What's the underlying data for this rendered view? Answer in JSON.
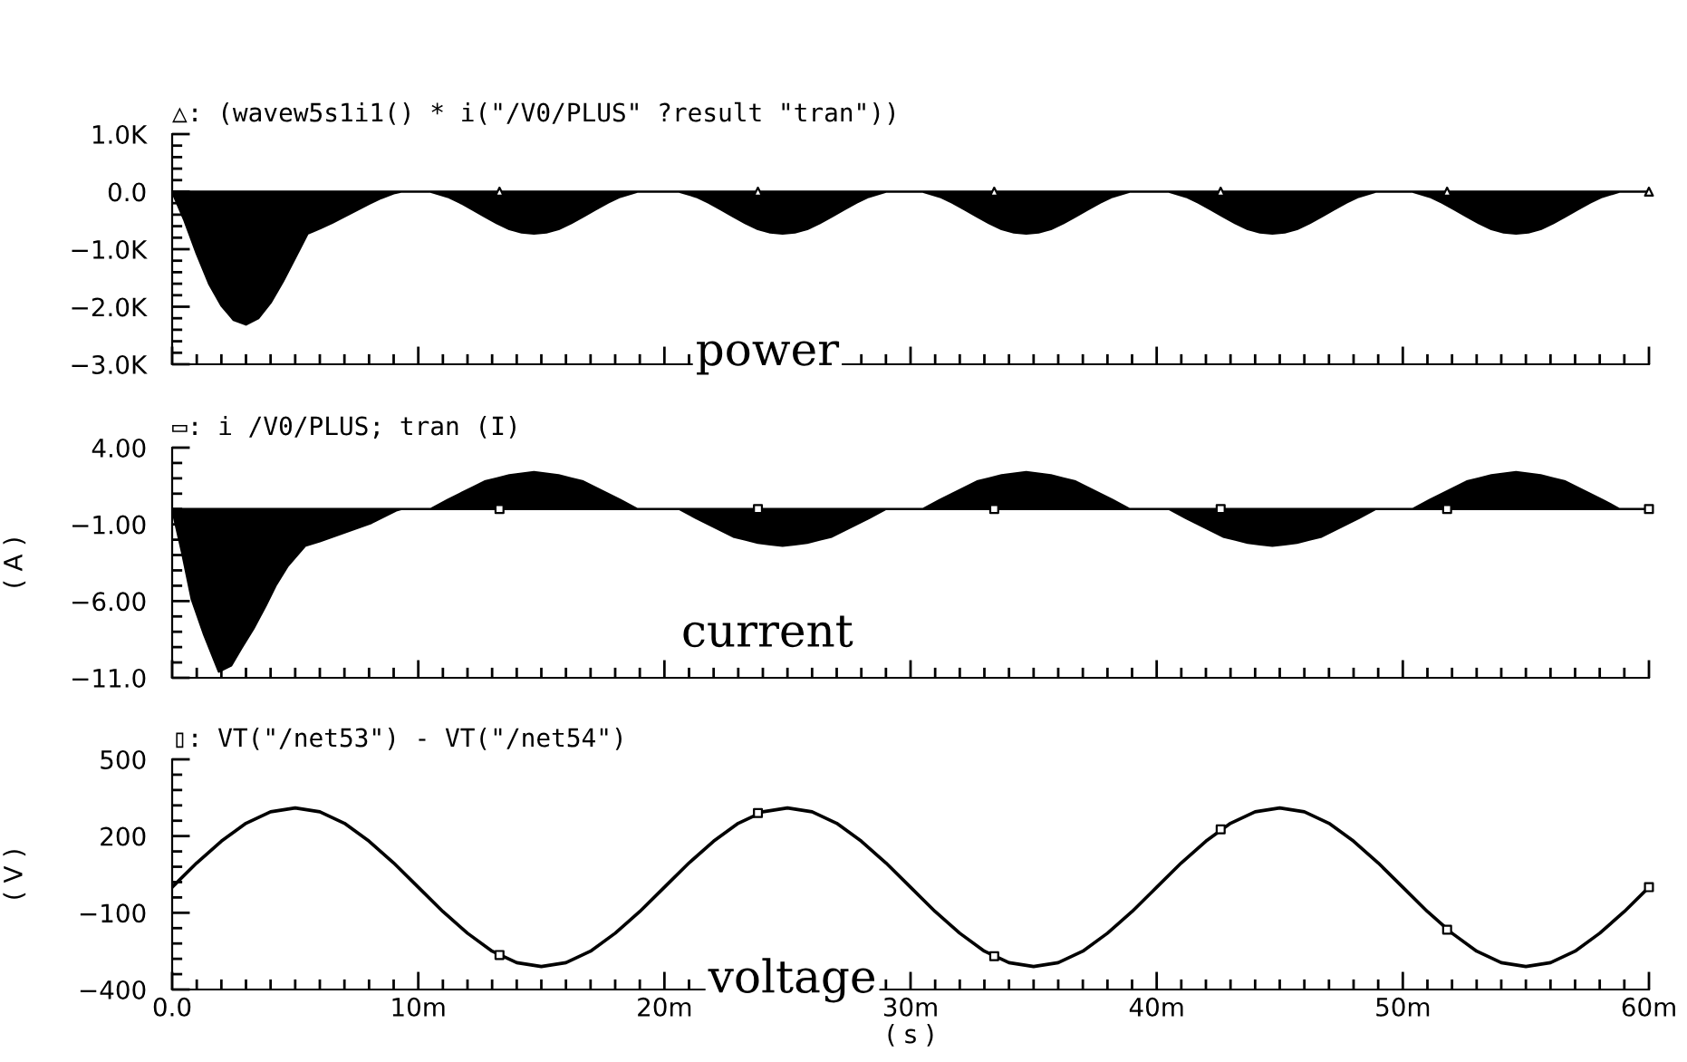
{
  "chart_data": [
    {
      "type": "area",
      "title": "△: (wavew5s1i1() * i(\"/V0/PLUS\" ?result \"tran\"))",
      "annotations": [
        "power"
      ],
      "xlim": [
        0,
        60
      ],
      "ylim": [
        -3000,
        1000
      ],
      "yticks": [
        {
          "value": 1000,
          "label": "1.0K"
        },
        {
          "value": 800,
          "label": null
        },
        {
          "value": 600,
          "label": null
        },
        {
          "value": 400,
          "label": null
        },
        {
          "value": 200,
          "label": null
        },
        {
          "value": 0,
          "label": "0.0"
        },
        {
          "value": -200,
          "label": null
        },
        {
          "value": -400,
          "label": null
        },
        {
          "value": -600,
          "label": null
        },
        {
          "value": -800,
          "label": null
        },
        {
          "value": -1000,
          "label": "−1.0K"
        },
        {
          "value": -1200,
          "label": null
        },
        {
          "value": -1400,
          "label": null
        },
        {
          "value": -1600,
          "label": null
        },
        {
          "value": -1800,
          "label": null
        },
        {
          "value": -2000,
          "label": "−2.0K"
        },
        {
          "value": -2200,
          "label": null
        },
        {
          "value": -2400,
          "label": null
        },
        {
          "value": -2600,
          "label": null
        },
        {
          "value": -2800,
          "label": null
        },
        {
          "value": -3000,
          "label": "−3.0K"
        }
      ],
      "tick_labels": "y",
      "series": [
        {
          "color": "#000000",
          "x": [
            0,
            0.5,
            1,
            1.5,
            2,
            2.5,
            3,
            3.5,
            4,
            4.5,
            5,
            5.5,
            6,
            6.5,
            7,
            7.5,
            8,
            8.5,
            9,
            9.3,
            10.5,
            11.2,
            11.7,
            12.2,
            12.7,
            13.2,
            13.7,
            14.2,
            14.7,
            15.2,
            15.7,
            16.2,
            16.7,
            17.2,
            17.7,
            18.2,
            18.9,
            20.6,
            21.3,
            21.8,
            22.3,
            22.8,
            23.3,
            23.8,
            24.3,
            24.8,
            25.3,
            25.8,
            26.3,
            26.8,
            27.3,
            27.8,
            28.3,
            29.0,
            30.5,
            31.2,
            31.7,
            32.2,
            32.7,
            33.2,
            33.7,
            34.2,
            34.7,
            35.2,
            35.7,
            36.2,
            36.7,
            37.2,
            37.7,
            38.2,
            38.9,
            40.5,
            41.2,
            41.7,
            42.2,
            42.7,
            43.2,
            43.7,
            44.2,
            44.7,
            45.2,
            45.7,
            46.2,
            46.7,
            47.2,
            47.7,
            48.2,
            48.9,
            50.4,
            51.1,
            51.6,
            52.1,
            52.6,
            53.1,
            53.6,
            54.1,
            54.6,
            55.1,
            55.6,
            56.1,
            56.6,
            57.1,
            57.6,
            58.1,
            58.8,
            60
          ],
          "values": [
            0,
            -500,
            -1080,
            -1600,
            -1980,
            -2230,
            -2310,
            -2200,
            -1930,
            -1560,
            -1150,
            -730,
            -640,
            -540,
            -430,
            -320,
            -210,
            -110,
            -30,
            0,
            0,
            -90,
            -190,
            -310,
            -430,
            -550,
            -650,
            -710,
            -730,
            -710,
            -650,
            -550,
            -430,
            -310,
            -190,
            -90,
            0,
            0,
            -90,
            -190,
            -310,
            -430,
            -550,
            -650,
            -710,
            -730,
            -710,
            -650,
            -550,
            -430,
            -310,
            -190,
            -90,
            0,
            0,
            -90,
            -190,
            -310,
            -430,
            -550,
            -650,
            -710,
            -730,
            -710,
            -650,
            -550,
            -430,
            -310,
            -190,
            -90,
            0,
            0,
            -90,
            -190,
            -310,
            -430,
            -550,
            -650,
            -710,
            -730,
            -710,
            -650,
            -550,
            -430,
            -310,
            -190,
            -90,
            0,
            0,
            -90,
            -190,
            -310,
            -430,
            -550,
            -650,
            -710,
            -730,
            -710,
            -650,
            -550,
            -430,
            -310,
            -190,
            -90,
            0,
            0
          ]
        },
        {
          "type": "scatter",
          "color": "#000000",
          "marker": "triangle",
          "x": [
            13.3,
            23.8,
            33.4,
            42.6,
            51.8,
            60
          ],
          "values": [
            0,
            0,
            0,
            0,
            0,
            0
          ]
        }
      ]
    },
    {
      "type": "area",
      "title": "▭: i /V0/PLUS; tran (I)",
      "ylabel": "( A )",
      "annotations": [
        "current"
      ],
      "xlim": [
        0,
        60
      ],
      "ylim": [
        -11,
        4
      ],
      "yticks": [
        {
          "value": 4,
          "label": "4.00"
        },
        {
          "value": 3,
          "label": null
        },
        {
          "value": 2,
          "label": null
        },
        {
          "value": 1,
          "label": null
        },
        {
          "value": 0,
          "label": null
        },
        {
          "value": -1,
          "label": "−1.00"
        },
        {
          "value": -2,
          "label": null
        },
        {
          "value": -3,
          "label": null
        },
        {
          "value": -4,
          "label": null
        },
        {
          "value": -5,
          "label": null
        },
        {
          "value": -6,
          "label": "−6.00"
        },
        {
          "value": -7,
          "label": null
        },
        {
          "value": -8,
          "label": null
        },
        {
          "value": -9,
          "label": null
        },
        {
          "value": -10,
          "label": null
        },
        {
          "value": -11,
          "label": "−11.0"
        }
      ],
      "tick_labels": "y",
      "series": [
        {
          "color": "#000000",
          "x": [
            0,
            0.4,
            0.8,
            1.3,
            1.9,
            2.4,
            2.8,
            3.3,
            3.8,
            4.2,
            4.7,
            5.4,
            6,
            6.7,
            7.4,
            8.1,
            8.6,
            9.1,
            9.3,
            10.5,
            11.2,
            11.7,
            12.2,
            12.7,
            13.2,
            13.7,
            14.2,
            14.7,
            15.2,
            15.7,
            16.2,
            16.7,
            17.2,
            17.7,
            18.2,
            18.9,
            20.6,
            21.3,
            21.8,
            22.3,
            22.8,
            23.3,
            23.8,
            24.3,
            24.8,
            25.3,
            25.8,
            26.3,
            26.8,
            27.3,
            27.8,
            28.3,
            29.0,
            30.5,
            31.2,
            31.7,
            32.2,
            32.7,
            33.2,
            33.7,
            34.2,
            34.7,
            35.2,
            35.7,
            36.2,
            36.7,
            37.2,
            37.7,
            38.2,
            38.9,
            40.5,
            41.2,
            41.7,
            42.2,
            42.7,
            43.2,
            43.7,
            44.2,
            44.7,
            45.2,
            45.7,
            46.2,
            46.7,
            47.2,
            47.7,
            48.2,
            48.9,
            50.4,
            51.1,
            51.6,
            52.1,
            52.6,
            53.1,
            53.6,
            54.1,
            54.6,
            55.1,
            55.6,
            56.1,
            56.6,
            57.1,
            57.6,
            58.1,
            58.8,
            60
          ],
          "values": [
            0,
            -2.8,
            -5.9,
            -8.2,
            -10.6,
            -10.2,
            -9.1,
            -7.8,
            -6.3,
            -5.0,
            -3.7,
            -2.4,
            -2.1,
            -1.7,
            -1.3,
            -0.9,
            -0.5,
            -0.1,
            0,
            0,
            0.6,
            1.0,
            1.4,
            1.8,
            2.0,
            2.2,
            2.3,
            2.4,
            2.3,
            2.2,
            2.0,
            1.8,
            1.4,
            1.0,
            0.6,
            0,
            0,
            -0.6,
            -1.0,
            -1.4,
            -1.8,
            -2.0,
            -2.2,
            -2.3,
            -2.4,
            -2.3,
            -2.2,
            -2.0,
            -1.8,
            -1.4,
            -1.0,
            -0.6,
            0,
            0,
            0.6,
            1.0,
            1.4,
            1.8,
            2.0,
            2.2,
            2.3,
            2.4,
            2.3,
            2.2,
            2.0,
            1.8,
            1.4,
            1.0,
            0.6,
            0,
            0,
            -0.6,
            -1.0,
            -1.4,
            -1.8,
            -2.0,
            -2.2,
            -2.3,
            -2.4,
            -2.3,
            -2.2,
            -2.0,
            -1.8,
            -1.4,
            -1.0,
            -0.6,
            0,
            0,
            0.6,
            1.0,
            1.4,
            1.8,
            2.0,
            2.2,
            2.3,
            2.4,
            2.3,
            2.2,
            2.0,
            1.8,
            1.4,
            1.0,
            0.6,
            0,
            0
          ]
        },
        {
          "type": "scatter",
          "color": "#000000",
          "marker": "square",
          "x": [
            13.3,
            23.8,
            33.4,
            42.6,
            51.8,
            60
          ],
          "values": [
            0,
            0,
            0,
            0,
            0,
            0
          ]
        }
      ]
    },
    {
      "type": "line",
      "title": "▯: VT(\"/net53\") - VT(\"/net54\")",
      "ylabel": "( V )",
      "xlabel": "( s )",
      "annotations": [
        "voltage"
      ],
      "xlim": [
        0,
        60
      ],
      "xticks": [
        {
          "value": 0,
          "label": "0.0"
        },
        {
          "value": 1,
          "label": null
        },
        {
          "value": 2,
          "label": null
        },
        {
          "value": 3,
          "label": null
        },
        {
          "value": 4,
          "label": null
        },
        {
          "value": 5,
          "label": null
        },
        {
          "value": 6,
          "label": null
        },
        {
          "value": 7,
          "label": null
        },
        {
          "value": 8,
          "label": null
        },
        {
          "value": 9,
          "label": null
        },
        {
          "value": 10,
          "label": "10m"
        },
        {
          "value": 11,
          "label": null
        },
        {
          "value": 12,
          "label": null
        },
        {
          "value": 13,
          "label": null
        },
        {
          "value": 14,
          "label": null
        },
        {
          "value": 15,
          "label": null
        },
        {
          "value": 16,
          "label": null
        },
        {
          "value": 17,
          "label": null
        },
        {
          "value": 18,
          "label": null
        },
        {
          "value": 19,
          "label": null
        },
        {
          "value": 20,
          "label": "20m"
        },
        {
          "value": 21,
          "label": null
        },
        {
          "value": 22,
          "label": null
        },
        {
          "value": 23,
          "label": null
        },
        {
          "value": 24,
          "label": null
        },
        {
          "value": 25,
          "label": null
        },
        {
          "value": 26,
          "label": null
        },
        {
          "value": 27,
          "label": null
        },
        {
          "value": 28,
          "label": null
        },
        {
          "value": 29,
          "label": null
        },
        {
          "value": 30,
          "label": "30m"
        },
        {
          "value": 31,
          "label": null
        },
        {
          "value": 32,
          "label": null
        },
        {
          "value": 33,
          "label": null
        },
        {
          "value": 34,
          "label": null
        },
        {
          "value": 35,
          "label": null
        },
        {
          "value": 36,
          "label": null
        },
        {
          "value": 37,
          "label": null
        },
        {
          "value": 38,
          "label": null
        },
        {
          "value": 39,
          "label": null
        },
        {
          "value": 40,
          "label": "40m"
        },
        {
          "value": 41,
          "label": null
        },
        {
          "value": 42,
          "label": null
        },
        {
          "value": 43,
          "label": null
        },
        {
          "value": 44,
          "label": null
        },
        {
          "value": 45,
          "label": null
        },
        {
          "value": 46,
          "label": null
        },
        {
          "value": 47,
          "label": null
        },
        {
          "value": 48,
          "label": null
        },
        {
          "value": 49,
          "label": null
        },
        {
          "value": 50,
          "label": "50m"
        },
        {
          "value": 51,
          "label": null
        },
        {
          "value": 52,
          "label": null
        },
        {
          "value": 53,
          "label": null
        },
        {
          "value": 54,
          "label": null
        },
        {
          "value": 55,
          "label": null
        },
        {
          "value": 56,
          "label": null
        },
        {
          "value": 57,
          "label": null
        },
        {
          "value": 58,
          "label": null
        },
        {
          "value": 59,
          "label": null
        },
        {
          "value": 60,
          "label": "60m"
        }
      ],
      "ylim": [
        -400,
        500
      ],
      "yticks": [
        {
          "value": 500,
          "label": "500"
        },
        {
          "value": 440,
          "label": null
        },
        {
          "value": 380,
          "label": null
        },
        {
          "value": 320,
          "label": null
        },
        {
          "value": 260,
          "label": null
        },
        {
          "value": 200,
          "label": "200"
        },
        {
          "value": 140,
          "label": null
        },
        {
          "value": 80,
          "label": null
        },
        {
          "value": 20,
          "label": null
        },
        {
          "value": -40,
          "label": null
        },
        {
          "value": -100,
          "label": "−100"
        },
        {
          "value": -160,
          "label": null
        },
        {
          "value": -220,
          "label": null
        },
        {
          "value": -280,
          "label": null
        },
        {
          "value": -340,
          "label": null
        },
        {
          "value": -400,
          "label": "−400"
        }
      ],
      "series": [
        {
          "color": "#000000",
          "x": [
            0,
            1,
            2,
            3,
            4,
            5,
            6,
            7,
            8,
            9,
            10,
            11,
            12,
            13,
            14,
            15,
            16,
            17,
            18,
            19,
            20,
            21,
            22,
            23,
            24,
            25,
            26,
            27,
            28,
            29,
            30,
            31,
            32,
            33,
            34,
            35,
            36,
            37,
            38,
            39,
            40,
            41,
            42,
            43,
            44,
            45,
            46,
            47,
            48,
            49,
            50,
            51,
            52,
            53,
            54,
            55,
            56,
            57,
            58,
            59,
            60
          ],
          "values": [
            0,
            95,
            180,
            250,
            295,
            310,
            295,
            250,
            180,
            95,
            0,
            -95,
            -180,
            -250,
            -295,
            -310,
            -295,
            -250,
            -180,
            -95,
            0,
            95,
            180,
            250,
            295,
            310,
            295,
            250,
            180,
            95,
            0,
            -95,
            -180,
            -250,
            -295,
            -310,
            -295,
            -250,
            -180,
            -95,
            0,
            95,
            180,
            250,
            295,
            310,
            295,
            250,
            180,
            95,
            0,
            -95,
            -180,
            -250,
            -295,
            -310,
            -295,
            -250,
            -180,
            -95,
            0
          ]
        },
        {
          "type": "scatter",
          "color": "#000000",
          "marker": "square",
          "x": [
            13.3,
            23.8,
            33.4,
            42.6,
            51.8,
            60
          ],
          "values": [
            -265,
            290,
            -270,
            226,
            -166,
            0
          ]
        }
      ]
    }
  ]
}
